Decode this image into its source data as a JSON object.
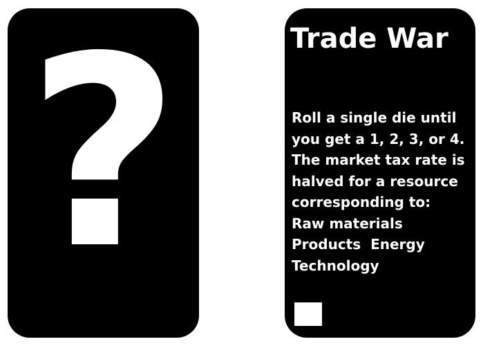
{
  "card_back": {
    "symbol": "?"
  },
  "card_front": {
    "title": "Trade War",
    "description_lines": [
      "Roll a single die until",
      "you get a 1, 2, 3, or 4.",
      "The market tax rate is",
      "halved for a resource",
      "corresponding to:",
      "Raw materials",
      "Products  Energy",
      "Technology"
    ]
  },
  "colors": {
    "card_background": "#000000",
    "card_text": "#ffffff",
    "page_background": "#ffffff"
  }
}
